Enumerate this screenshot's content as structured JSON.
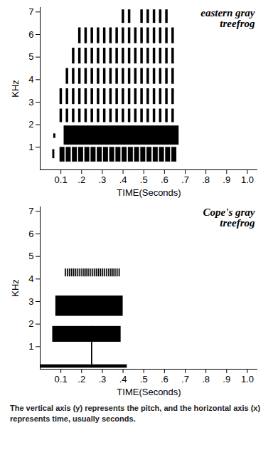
{
  "chart_data": [
    {
      "type": "spectrogram",
      "title": "eastern gray treefrog",
      "x_label": "TIME(Seconds)",
      "y_label": "KHz",
      "color": "#000000",
      "xlim": [
        0,
        1.05
      ],
      "xticks": [
        0.1,
        {
          "value": 0.2,
          "label": ".2"
        },
        {
          "value": 0.3,
          "label": ".3"
        },
        {
          "value": 0.4,
          "label": ".4"
        },
        {
          "value": 0.5,
          "label": ".5"
        },
        {
          "value": 0.6,
          "label": ".6"
        },
        {
          "value": 0.7,
          "label": ".7"
        },
        {
          "value": 0.8,
          "label": ".8"
        },
        {
          "value": 0.9,
          "label": ".9"
        },
        {
          "value": 1,
          "label": "1.0"
        }
      ],
      "ylim": [
        0,
        7.2
      ],
      "yticks": [
        1,
        2,
        3,
        4,
        5,
        6,
        7
      ],
      "blocks": [
        {
          "time": [
            0.115,
            0.67
          ],
          "khz": [
            1.1,
            1.95
          ]
        },
        {
          "time": [
            0.06,
            0.07
          ],
          "khz": [
            0.5,
            0.9
          ]
        },
        {
          "time": [
            0.065,
            0.075
          ],
          "khz": [
            1.4,
            1.6
          ]
        }
      ],
      "pulse_trains": [
        {
          "times": [
            0.095,
            0.125,
            0.155,
            0.185,
            0.215,
            0.245,
            0.275,
            0.305,
            0.335,
            0.365,
            0.395,
            0.425,
            0.455,
            0.485,
            0.515,
            0.545,
            0.575,
            0.605,
            0.635
          ],
          "duration": 0.024,
          "bands": [
            [
              0.35,
              1.0
            ]
          ]
        },
        {
          "times": [
            0.095,
            0.125,
            0.155,
            0.185,
            0.215,
            0.245,
            0.275,
            0.305,
            0.335,
            0.365,
            0.395,
            0.425,
            0.455,
            0.485,
            0.515,
            0.545,
            0.575,
            0.605,
            0.635
          ],
          "duration": 0.012,
          "bands": [
            [
              2.1,
              2.7
            ],
            [
              2.9,
              3.6
            ],
            [
              3.8,
              4.5
            ],
            [
              4.7,
              5.4
            ],
            [
              5.6,
              6.3
            ],
            [
              6.5,
              7.1
            ]
          ],
          "counts": [
            2,
            3,
            4,
            5,
            5,
            5,
            5,
            5,
            5,
            5,
            6,
            6,
            5,
            6,
            6,
            6,
            6,
            6,
            5
          ]
        }
      ]
    },
    {
      "type": "spectrogram",
      "title": "Cope's gray treefrog",
      "x_label": "TIME(Seconds)",
      "y_label": "KHz",
      "color": "#000000",
      "xlim": [
        0,
        1.05
      ],
      "xticks": [
        0.1,
        {
          "value": 0.2,
          "label": ".2"
        },
        {
          "value": 0.3,
          "label": ".3"
        },
        {
          "value": 0.4,
          "label": ".4"
        },
        {
          "value": 0.5,
          "label": ".5"
        },
        {
          "value": 0.6,
          "label": ".6"
        },
        {
          "value": 0.7,
          "label": ".7"
        },
        {
          "value": 0.8,
          "label": ".8"
        },
        {
          "value": 0.9,
          "label": ".9"
        },
        {
          "value": 1,
          "label": "1.0"
        }
      ],
      "ylim": [
        0,
        7.2
      ],
      "yticks": [
        1,
        2,
        3,
        4,
        5,
        6,
        7
      ],
      "blocks": [
        {
          "time": [
            0.06,
            0.39
          ],
          "khz": [
            1.2,
            1.9
          ]
        },
        {
          "time": [
            0.075,
            0.4
          ],
          "khz": [
            2.35,
            3.25
          ]
        },
        {
          "time": [
            0.0,
            0.42
          ],
          "khz": [
            0.05,
            0.2
          ]
        },
        {
          "time": [
            0.247,
            0.253
          ],
          "khz": [
            0.2,
            1.9
          ]
        }
      ],
      "pulse_trains": [
        {
          "times": [
            0.12,
            0.13,
            0.14,
            0.15,
            0.16,
            0.17,
            0.18,
            0.19,
            0.2,
            0.21,
            0.22,
            0.23,
            0.24,
            0.25,
            0.26,
            0.27,
            0.28,
            0.29,
            0.3,
            0.31,
            0.32,
            0.33,
            0.34,
            0.35,
            0.36,
            0.37,
            0.38
          ],
          "duration": 0.006,
          "bands": [
            [
              4.1,
              4.45
            ]
          ]
        }
      ]
    }
  ],
  "caption": "The vertical axis (y) represents the pitch, and the horizontal axis (x) represents time, usually seconds."
}
